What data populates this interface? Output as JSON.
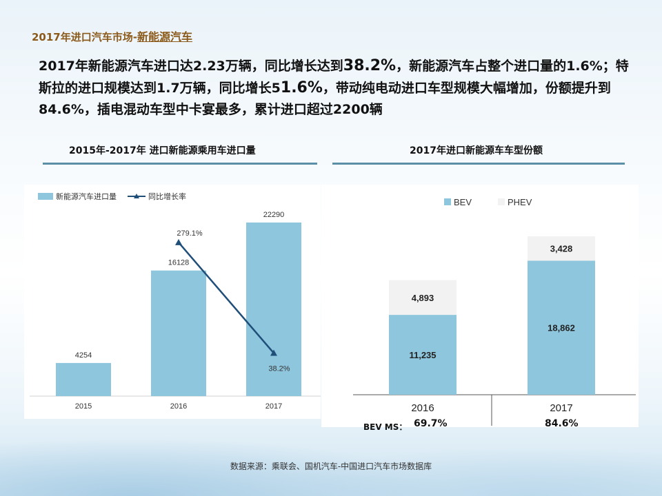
{
  "slide": {
    "title_main": "2017年进口汽车市场-",
    "title_sub": "新能源汽车",
    "headline_parts": [
      "2017年新能源汽车进口达2.23万辆，同比增长达到",
      "38.2%",
      "，新能源汽车占整个进口量的1.6%；特斯拉的进口规模达到1.7万辆，同比增长5",
      "1.6%",
      "，带动纯电动进口车型规模大幅增加，份额提升到84.6%，插电混动车型中卡宴最多，累计进口超过2200辆"
    ],
    "source": "数据来源：乘联会、国机汽车-中国进口汽车市场数据库"
  },
  "colors": {
    "bar": "#8ec6dd",
    "line": "#1f4e79",
    "phev": "#f2f2f2",
    "rule": "#5b8fa8",
    "title": "#8b5a1a"
  },
  "chart_data": [
    {
      "type": "bar",
      "title": "2015年-2017年 进口新能源乘用车进口量",
      "categories": [
        "2015",
        "2016",
        "2017"
      ],
      "series": [
        {
          "name": "新能源汽车进口量",
          "kind": "bar",
          "values": [
            4254,
            16128,
            22290
          ],
          "labels": [
            "4254",
            "16128",
            "22290"
          ]
        },
        {
          "name": "同比增长率",
          "kind": "line",
          "values": [
            null,
            279.1,
            38.2
          ],
          "labels": [
            "",
            "279.1%",
            "38.2%"
          ]
        }
      ],
      "legend": "top-left",
      "grid": false
    },
    {
      "type": "bar",
      "stacked": true,
      "title": "2017年进口新能源车车型份额",
      "categories": [
        "2016",
        "2017"
      ],
      "series": [
        {
          "name": "BEV",
          "values": [
            11235,
            18862
          ],
          "labels": [
            "11,235",
            "18,862"
          ]
        },
        {
          "name": "PHEV",
          "values": [
            4893,
            3428
          ],
          "labels": [
            "4,893",
            "3,428"
          ]
        }
      ],
      "legend": "top",
      "grid": false,
      "footer_label": "BEV MS：",
      "footer_values": [
        "69.7%",
        "84.6%"
      ]
    }
  ]
}
